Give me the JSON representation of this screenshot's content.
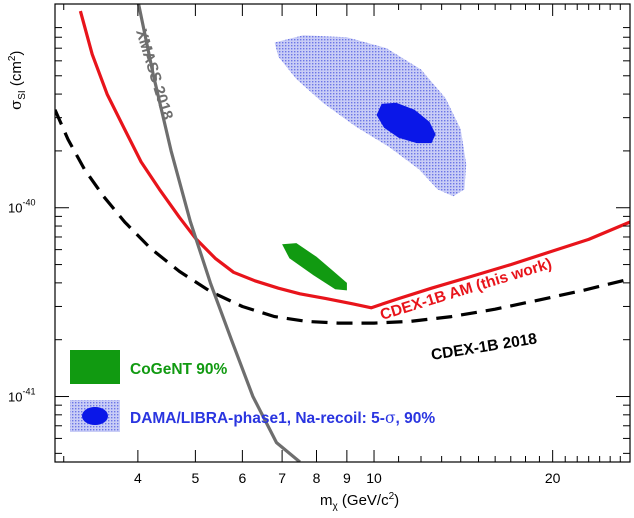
{
  "chart_data": {
    "type": "line",
    "xlabel": "m",
    "xlabel_sub": "χ",
    "xlabel_units": " (GeV/c",
    "xlabel_sup": "2",
    "xlabel_close": ")",
    "ylabel": "σ",
    "ylabel_sub": "SI",
    "ylabel_units": " (cm",
    "ylabel_sup": "2",
    "ylabel_close": ")",
    "xscale": "log",
    "yscale": "log",
    "xlim": [
      2.9,
      27
    ],
    "ylim": [
      4.5e-42,
      1.2e-39
    ],
    "x_ticks": [
      {
        "v": 4,
        "label": "4"
      },
      {
        "v": 5,
        "label": "5"
      },
      {
        "v": 6,
        "label": "6"
      },
      {
        "v": 7,
        "label": "7"
      },
      {
        "v": 8,
        "label": "8"
      },
      {
        "v": 9,
        "label": "9"
      },
      {
        "v": 10,
        "label": "10"
      },
      {
        "v": 20,
        "label": "20"
      }
    ],
    "x_minor_ticks": [
      3,
      11,
      12,
      13,
      14,
      15,
      16,
      17,
      18,
      19,
      21,
      22,
      23,
      24,
      25,
      26,
      27
    ],
    "y_ticks": [
      {
        "v": 1e-41,
        "base": "10",
        "exp": "-41"
      },
      {
        "v": 1e-40,
        "base": "10",
        "exp": "-40"
      }
    ],
    "y_minor_ticks": [
      5e-42,
      6e-42,
      7e-42,
      8e-42,
      9e-42,
      2e-41,
      3e-41,
      4e-41,
      5e-41,
      6e-41,
      7e-41,
      8e-41,
      9e-41,
      2e-40,
      3e-40,
      4e-40,
      5e-40,
      6e-40,
      7e-40,
      8e-40,
      9e-40
    ],
    "series": [
      {
        "name": "CDEX-1B AM (this work)",
        "color": "#e8141b",
        "style": "solid",
        "x": [
          3.2,
          3.35,
          3.55,
          3.8,
          4.05,
          4.35,
          4.7,
          5.0,
          5.4,
          5.8,
          6.3,
          6.9,
          7.5,
          8.3,
          9.2,
          9.9,
          10.2,
          11.0,
          12.5,
          14.5,
          17.0,
          20.0,
          23.0,
          27.0
        ],
        "y": [
          1.1e-39,
          6.5e-40,
          4e-40,
          2.6e-40,
          1.75e-40,
          1.25e-40,
          8.9e-41,
          6.9e-41,
          5.4e-41,
          4.55e-41,
          4.1e-41,
          3.75e-41,
          3.5e-41,
          3.3e-41,
          3.1e-41,
          2.95e-41,
          3.05e-41,
          3.3e-41,
          3.75e-41,
          4.3e-41,
          5e-41,
          5.9e-41,
          6.8e-41,
          8.4e-41
        ]
      },
      {
        "name": "CDEX-1B 2018",
        "color": "#000000",
        "style": "dashed",
        "x": [
          2.9,
          3.05,
          3.25,
          3.5,
          3.8,
          4.2,
          4.7,
          5.3,
          6.0,
          6.8,
          7.7,
          8.7,
          10.0,
          11.5,
          13.5,
          16.0,
          19.0,
          22.5,
          27.0
        ],
        "y": [
          3.3e-40,
          2.3e-40,
          1.6e-40,
          1.15e-40,
          8.4e-41,
          6.1e-41,
          4.6e-41,
          3.6e-41,
          3e-41,
          2.65e-41,
          2.5e-41,
          2.45e-41,
          2.45e-41,
          2.5e-41,
          2.65e-41,
          2.9e-41,
          3.25e-41,
          3.65e-41,
          4.2e-41
        ]
      },
      {
        "name": "XMASS 2018",
        "color": "#6e6e6e",
        "style": "solid",
        "x": [
          4.0,
          4.25,
          4.55,
          4.9,
          5.3,
          5.75,
          6.25,
          6.85,
          7.5
        ],
        "y": [
          1.25e-39,
          5e-40,
          2e-40,
          8.5e-41,
          4e-41,
          2e-41,
          1e-41,
          5.7e-42,
          4.5e-42
        ]
      }
    ],
    "regions": [
      {
        "name": "CoGeNT 90%",
        "color": "#119a11",
        "fill": "solid",
        "x": [
          7.0,
          7.4,
          8.0,
          8.55,
          9.0,
          9.0,
          8.6,
          7.9,
          7.2,
          7.0
        ],
        "y": [
          6.4e-41,
          6.5e-41,
          5.5e-41,
          4.6e-41,
          4e-41,
          3.65e-41,
          3.7e-41,
          4.4e-41,
          5.4e-41,
          6.4e-41
        ]
      },
      {
        "name": "DAMA/LIBRA-phase1, Na-recoil: 5-σ",
        "color": "#7f87e8",
        "fill": "hatched",
        "x": [
          6.8,
          7.6,
          9.0,
          10.5,
          12.0,
          13.2,
          14.0,
          14.3,
          14.2,
          13.6,
          12.8,
          11.9,
          10.6,
          9.3,
          8.2,
          7.4,
          6.9,
          6.8
        ],
        "y": [
          7.5e-40,
          8.2e-40,
          8e-40,
          7e-40,
          5.4e-40,
          3.8e-40,
          2.6e-40,
          1.7e-40,
          1.25e-40,
          1.15e-40,
          1.25e-40,
          1.6e-40,
          2.1e-40,
          2.7e-40,
          3.6e-40,
          4.8e-40,
          6.3e-40,
          7.5e-40
        ]
      },
      {
        "name": "DAMA/LIBRA-phase1, Na-recoil: 90%",
        "color": "#0a17e8",
        "fill": "solid",
        "x": [
          10.3,
          10.9,
          11.7,
          12.4,
          12.7,
          12.5,
          11.8,
          11.0,
          10.4,
          10.1,
          10.3
        ],
        "y": [
          3.55e-40,
          3.6e-40,
          3.3e-40,
          2.85e-40,
          2.45e-40,
          2.2e-40,
          2.2e-40,
          2.35e-40,
          2.65e-40,
          3.1e-40,
          3.55e-40
        ]
      }
    ],
    "annotations": [
      {
        "text": "CDEX-1B AM (this work)",
        "color": "#e8141b"
      },
      {
        "text": "CDEX-1B 2018",
        "color": "#000000"
      },
      {
        "text": "XMASS 2018",
        "color": "#6e6e6e"
      }
    ],
    "legend": {
      "placement": "bottom-left",
      "items": [
        {
          "label": "CoGeNT 90%",
          "color": "#119a11"
        },
        {
          "label": "DAMA/LIBRA-phase1, Na-recoil:  5-σ, 90%",
          "color": "#2a35e0",
          "label_main": "DAMA/LIBRA-phase1, Na-recoil:  5-",
          "label_sigma": "σ",
          "label_tail": ", 90%"
        }
      ]
    }
  }
}
